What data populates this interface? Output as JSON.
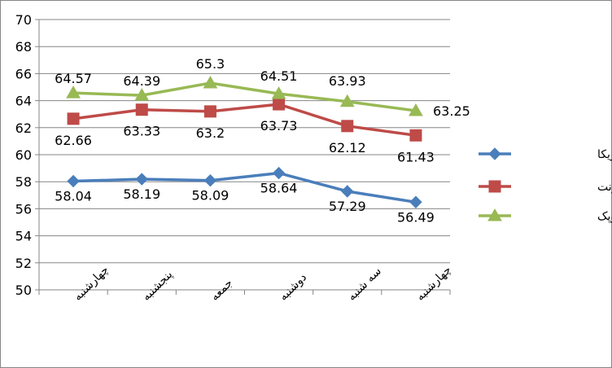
{
  "chart_data": {
    "type": "line",
    "title": "",
    "xlabel": "",
    "ylabel": "",
    "categories": [
      "چهارشنبه",
      "پنجشنبه",
      "جمعه",
      "دوشنبه",
      "سه شنبه",
      "چهارشنبه"
    ],
    "y_ticks": [
      "50",
      "52",
      "54",
      "56",
      "58",
      "60",
      "62",
      "64",
      "66",
      "68",
      "70"
    ],
    "ylim": [
      50,
      70
    ],
    "grid": "horizontal",
    "legend_position": "right",
    "series": [
      {
        "name": "نفت خام آمریکا",
        "color": "#4A7EBB",
        "marker": "diamond",
        "values": [
          58.04,
          58.19,
          58.09,
          58.64,
          57.29,
          56.49
        ],
        "labels": [
          "58.04",
          "58.19",
          "58.09",
          "58.64",
          "57.29",
          "56.49"
        ]
      },
      {
        "name": "نفت برنت",
        "color": "#BE4B48",
        "marker": "square",
        "values": [
          62.66,
          63.33,
          63.2,
          63.73,
          62.12,
          61.43
        ],
        "labels": [
          "62.66",
          "63.33",
          "63.2",
          "63.73",
          "62.12",
          "61.43"
        ]
      },
      {
        "name": "نفت اوپک",
        "color": "#98B954",
        "marker": "triangle",
        "values": [
          64.57,
          64.39,
          65.3,
          64.51,
          63.93,
          63.25
        ],
        "labels": [
          "64.57",
          "64.39",
          "65.3",
          "64.51",
          "63.93",
          "63.25"
        ]
      }
    ]
  }
}
